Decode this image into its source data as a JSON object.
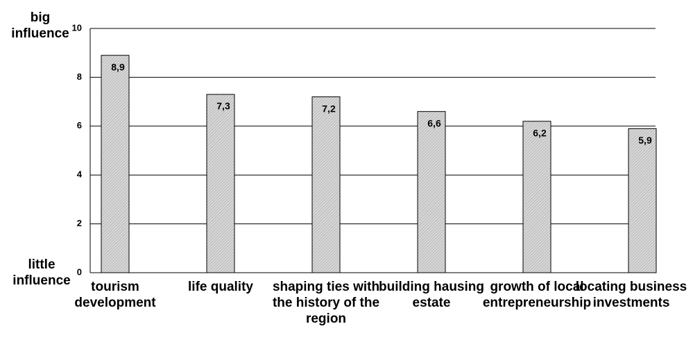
{
  "chart_data": {
    "type": "bar",
    "annotations": [
      "big influence",
      "little influence"
    ],
    "categories": [
      "tourism development",
      "life quality",
      "shaping ties with the history of the region",
      "building hausing estate",
      "growth of local entrepreneurship",
      "locating business investments"
    ],
    "values": [
      8.9,
      7.3,
      7.2,
      6.6,
      6.2,
      5.9
    ],
    "value_labels": [
      "8,9",
      "7,3",
      "7,2",
      "6,6",
      "6,2",
      "5,9"
    ],
    "color": "#c8c8c8",
    "ylim": [
      0,
      10
    ],
    "yticks": [
      0,
      2,
      4,
      6,
      8,
      10
    ],
    "grid": true
  }
}
